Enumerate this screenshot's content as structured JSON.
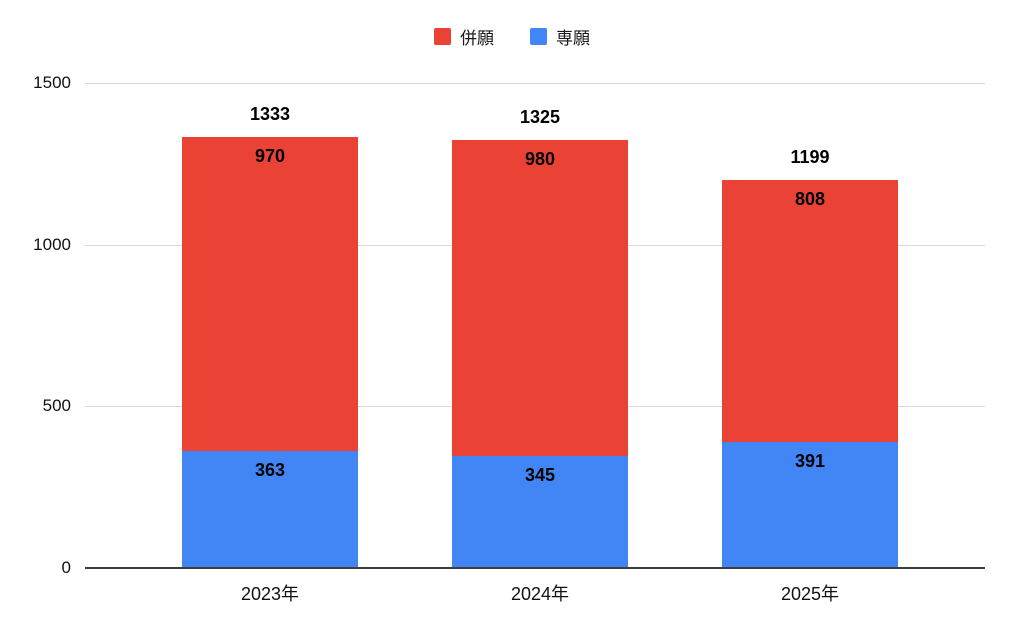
{
  "chart_data": {
    "type": "bar",
    "stacked": true,
    "title": "",
    "categories": [
      "2023年",
      "2024年",
      "2025年"
    ],
    "series": [
      {
        "name": "専願",
        "color": "#4285f4",
        "values": [
          363,
          345,
          391
        ]
      },
      {
        "name": "併願",
        "color": "#ea4335",
        "values": [
          970,
          980,
          808
        ]
      }
    ],
    "totals": [
      1333,
      1325,
      1199
    ],
    "yticks": [
      0,
      500,
      1000,
      1500
    ],
    "ylim": [
      0,
      1500
    ],
    "grid": true,
    "legend": {
      "position": "top",
      "items": [
        {
          "label": "併願",
          "color": "#ea4335"
        },
        {
          "label": "専願",
          "color": "#4285f4"
        }
      ]
    },
    "colors": {
      "background": "#ffffff",
      "gridline": "#d9d9d9",
      "axis_line": "#3d3d3d",
      "value_label_text": "#000000",
      "tick_text": "#111111"
    }
  }
}
